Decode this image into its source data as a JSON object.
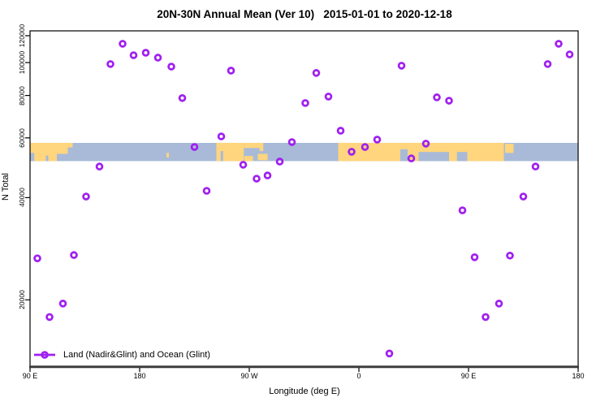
{
  "chart_data": {
    "type": "scatter",
    "title": "20N-30N Annual Mean (Ver 10)   2015-01-01 to 2020-12-18",
    "xlabel": "Longitude (deg E)",
    "ylabel": "N Total",
    "x_axis": {
      "range": [
        90,
        540
      ],
      "ticks": [
        {
          "pos": 90,
          "label": "90 E"
        },
        {
          "pos": 180,
          "label": "180"
        },
        {
          "pos": 270,
          "label": "90 W"
        },
        {
          "pos": 360,
          "label": "0"
        },
        {
          "pos": 450,
          "label": "90 E"
        },
        {
          "pos": 540,
          "label": "180"
        }
      ]
    },
    "y_axis": {
      "scale": "log",
      "range": [
        12750,
        124000
      ],
      "ticks": [
        {
          "value": 120000,
          "label": "120000"
        },
        {
          "value": 100000,
          "label": "100000"
        },
        {
          "value": 80000,
          "label": "80000"
        },
        {
          "value": 60000,
          "label": "60000"
        },
        {
          "value": 40000,
          "label": "40000"
        },
        {
          "value": 20000,
          "label": "20000"
        }
      ]
    },
    "legend": {
      "label": "Land (Nadir&Glint) and Ocean (Glint)"
    },
    "marker": {
      "shape": "open-circle",
      "color": "#A020F0",
      "radius": 3.4,
      "stroke_width": 2.8
    },
    "map_band": {
      "description": "world coastline strip 20N-30N",
      "value_top": 58000,
      "value_bottom": 51250,
      "ocean_color": "#A8BAD8",
      "land_color": "#FFD57D",
      "land": [
        {
          "from": 90,
          "to": 112,
          "top": 0,
          "bottom": 1
        },
        {
          "from": 112,
          "to": 121,
          "top": 0,
          "bottom": 0.6
        },
        {
          "from": 121,
          "to": 125,
          "top": 0,
          "bottom": 0.25
        },
        {
          "from": 202,
          "to": 204,
          "top": 0.55,
          "bottom": 0.8
        },
        {
          "from": 243,
          "to": 252,
          "top": 0,
          "bottom": 1
        },
        {
          "from": 252,
          "to": 265.5,
          "top": 0,
          "bottom": 1
        },
        {
          "from": 265.5,
          "to": 279,
          "top": 0,
          "bottom": 0.28
        },
        {
          "from": 266,
          "to": 273,
          "top": 0.72,
          "bottom": 1
        },
        {
          "from": 277,
          "to": 285,
          "top": 0.6,
          "bottom": 0.95
        },
        {
          "from": 278.5,
          "to": 281.5,
          "top": 0,
          "bottom": 0.45
        },
        {
          "from": 343,
          "to": 479,
          "top": 0,
          "bottom": 1
        },
        {
          "from": 480,
          "to": 487,
          "top": 0.05,
          "bottom": 0.55
        }
      ],
      "water_notches": [
        {
          "from": 90,
          "to": 93.5,
          "top": 0.55,
          "bottom": 1
        },
        {
          "from": 103,
          "to": 105,
          "top": 0.7,
          "bottom": 1
        },
        {
          "from": 246.5,
          "to": 248.5,
          "top": 0.45,
          "bottom": 1
        },
        {
          "from": 394,
          "to": 400,
          "top": 0.35,
          "bottom": 1
        },
        {
          "from": 409,
          "to": 434,
          "top": 0.5,
          "bottom": 1
        },
        {
          "from": 440.5,
          "to": 449,
          "top": 0.5,
          "bottom": 1
        }
      ]
    },
    "points": [
      [
        96,
        26500
      ],
      [
        106,
        17800
      ],
      [
        117,
        19500
      ],
      [
        126,
        27100
      ],
      [
        136,
        40300
      ],
      [
        147,
        49400
      ],
      [
        156,
        99000
      ],
      [
        166,
        113600
      ],
      [
        175,
        105100
      ],
      [
        185,
        106900
      ],
      [
        195,
        103400
      ],
      [
        206,
        97300
      ],
      [
        215,
        78600
      ],
      [
        225,
        56400
      ],
      [
        235,
        41900
      ],
      [
        247,
        60600
      ],
      [
        255,
        94700
      ],
      [
        265,
        50000
      ],
      [
        276,
        45500
      ],
      [
        285,
        46500
      ],
      [
        295,
        51100
      ],
      [
        305,
        58300
      ],
      [
        316,
        76000
      ],
      [
        325,
        93200
      ],
      [
        335,
        79400
      ],
      [
        345,
        63000
      ],
      [
        354,
        54600
      ],
      [
        365,
        56400
      ],
      [
        375,
        59300
      ],
      [
        385,
        13900
      ],
      [
        395,
        97900
      ],
      [
        403,
        52200
      ],
      [
        415,
        57700
      ],
      [
        424,
        79000
      ],
      [
        434,
        77200
      ],
      [
        445,
        36700
      ],
      [
        455,
        26700
      ],
      [
        464,
        17800
      ],
      [
        475,
        19500
      ],
      [
        484,
        27000
      ],
      [
        495,
        40300
      ],
      [
        505,
        49400
      ],
      [
        515,
        99000
      ],
      [
        524,
        113600
      ],
      [
        533,
        105700
      ]
    ]
  },
  "colors": {
    "background": "#FFFFFF",
    "frame": "#000000",
    "axis_heavy": "#3C3C3C",
    "text": "#000000"
  }
}
